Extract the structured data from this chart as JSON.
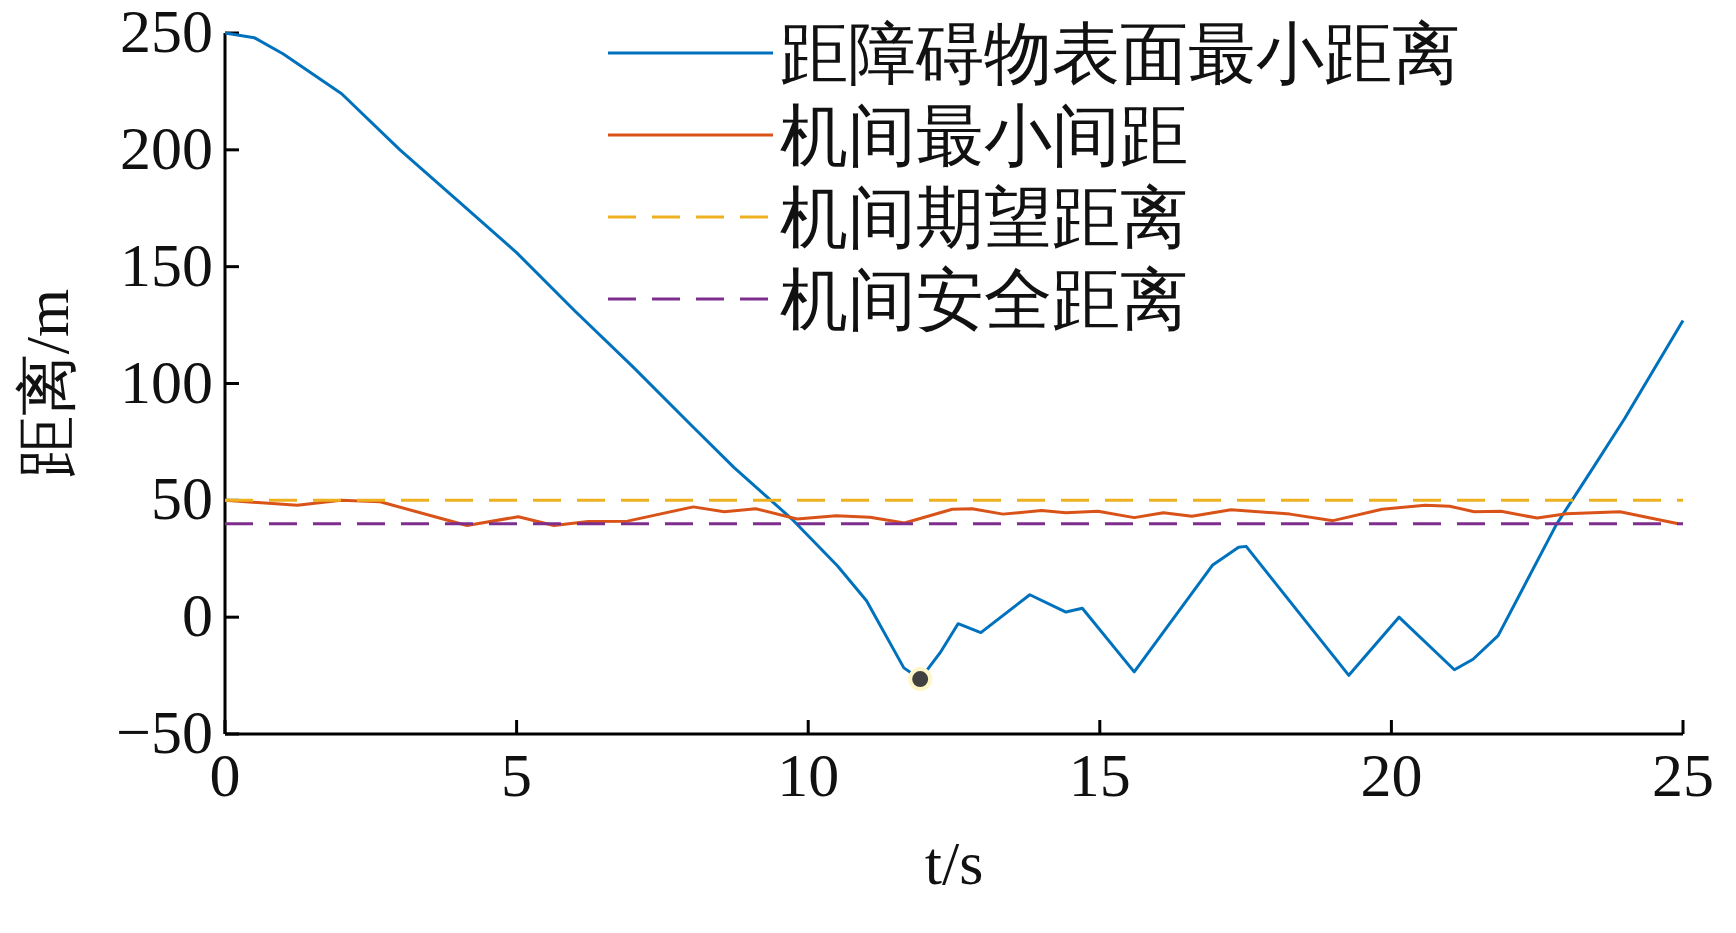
{
  "chart_data": {
    "type": "line",
    "xlabel": "t/s",
    "ylabel": "距离/m",
    "xlim": [
      0,
      25
    ],
    "ylim": [
      -50,
      250
    ],
    "xticks": [
      0,
      5,
      10,
      15,
      20,
      25
    ],
    "yticks": [
      {
        "value": -50,
        "label": "−50"
      },
      0,
      50,
      100,
      150,
      200,
      250
    ],
    "legend": "top right",
    "series": [
      {
        "name": "距障碍物表面最小距离",
        "color": "#0072bd",
        "line_style": "solid",
        "x": [
          0,
          0.5,
          1,
          2,
          3,
          4,
          5,
          6,
          7,
          8,
          8.73,
          9.72,
          10.5,
          11,
          11.64,
          11.92,
          12.26,
          12.57,
          12.96,
          13.8,
          14.42,
          14.7,
          15.59,
          16.93,
          17.38,
          17.51,
          19.27,
          20.13,
          21.08,
          21.4,
          21.83,
          22.83,
          23.46,
          24,
          25
        ],
        "values": [
          250,
          248,
          241,
          224,
          200,
          178,
          156,
          131,
          107,
          82,
          64,
          42,
          22,
          7,
          -21.7,
          -26.5,
          -15.3,
          -2.8,
          -6.6,
          9.6,
          2.2,
          3.8,
          -23.4,
          22.2,
          29.9,
          30.3,
          -24.9,
          0,
          -22.5,
          -18,
          -7.9,
          39.7,
          64,
          85,
          127
        ]
      },
      {
        "name": "机间最小间距",
        "color": "#d95319",
        "line_style": "solid",
        "x": [
          0,
          1.24,
          1.99,
          2.66,
          3.74,
          4.15,
          5.03,
          5.64,
          6.23,
          6.9,
          8.03,
          8.56,
          9.1,
          9.81,
          10.48,
          11.06,
          11.65,
          12.47,
          12.81,
          13.34,
          14.0,
          14.42,
          14.97,
          15.59,
          16.09,
          16.58,
          17.25,
          18.26,
          19.0,
          19.84,
          20.58,
          21.0,
          21.42,
          21.88,
          22.5,
          23.0,
          23.92,
          24.92
        ],
        "values": [
          50,
          47.9,
          50,
          49.4,
          42,
          39.2,
          43,
          39.2,
          40.9,
          41.1,
          47.2,
          45.1,
          46.4,
          42,
          43.4,
          42.8,
          40.3,
          46.2,
          46.4,
          44.1,
          45.6,
          44.7,
          45.3,
          42.6,
          44.7,
          43.2,
          46,
          44.1,
          41.3,
          46.2,
          47.9,
          47.5,
          45.1,
          45.3,
          42.4,
          44.3,
          45.1,
          40
        ]
      },
      {
        "name": "机间期望距离",
        "color": "#edb120",
        "line_style": "dashed",
        "x": [
          0,
          25
        ],
        "values": [
          50,
          50
        ]
      },
      {
        "name": "机间安全距离",
        "color": "#7e2f8e",
        "line_style": "dashed",
        "x": [
          0,
          25
        ],
        "values": [
          40,
          40
        ]
      },
      {
        "type": "scatter",
        "color": "#404040",
        "marker": "circle",
        "x": [
          11.92
        ],
        "values": [
          -26.5
        ]
      }
    ]
  }
}
